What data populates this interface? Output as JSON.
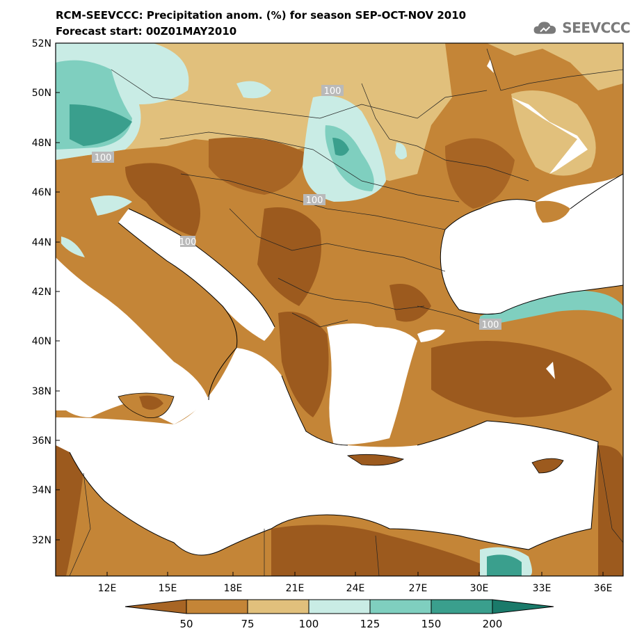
{
  "title": {
    "line1": "RCM-SEEVCCC: Precipitation anom. (%) for season SEP-OCT-NOV 2010",
    "line2": "Forecast start: 00Z01MAY2010"
  },
  "logo": {
    "text": "SEEVCCC",
    "icon": "cloud-icon"
  },
  "map": {
    "lat_ticks": [
      "52N",
      "50N",
      "48N",
      "46N",
      "44N",
      "42N",
      "40N",
      "38N",
      "36N",
      "34N",
      "32N"
    ],
    "lon_ticks": [
      "12E",
      "15E",
      "18E",
      "21E",
      "24E",
      "27E",
      "30E",
      "33E",
      "36E"
    ],
    "contour_labels": [
      "100",
      "100",
      "100",
      "100",
      "100"
    ]
  },
  "colorbar": {
    "labels": [
      "50",
      "75",
      "100",
      "125",
      "150",
      "200"
    ],
    "colors": [
      "#a86524",
      "#c48537",
      "#e1c07c",
      "#c9ece5",
      "#7fcfbf",
      "#3a9f8d",
      "#1a7a6a"
    ]
  },
  "palette": {
    "dark_brown": "#9c5a1e",
    "mid_brown": "#c48537",
    "tan": "#e1c07c",
    "light_teal": "#c9ece5",
    "mid_teal": "#7fcfbf",
    "dark_teal": "#3a9f8d",
    "sea": "#ffffff"
  }
}
